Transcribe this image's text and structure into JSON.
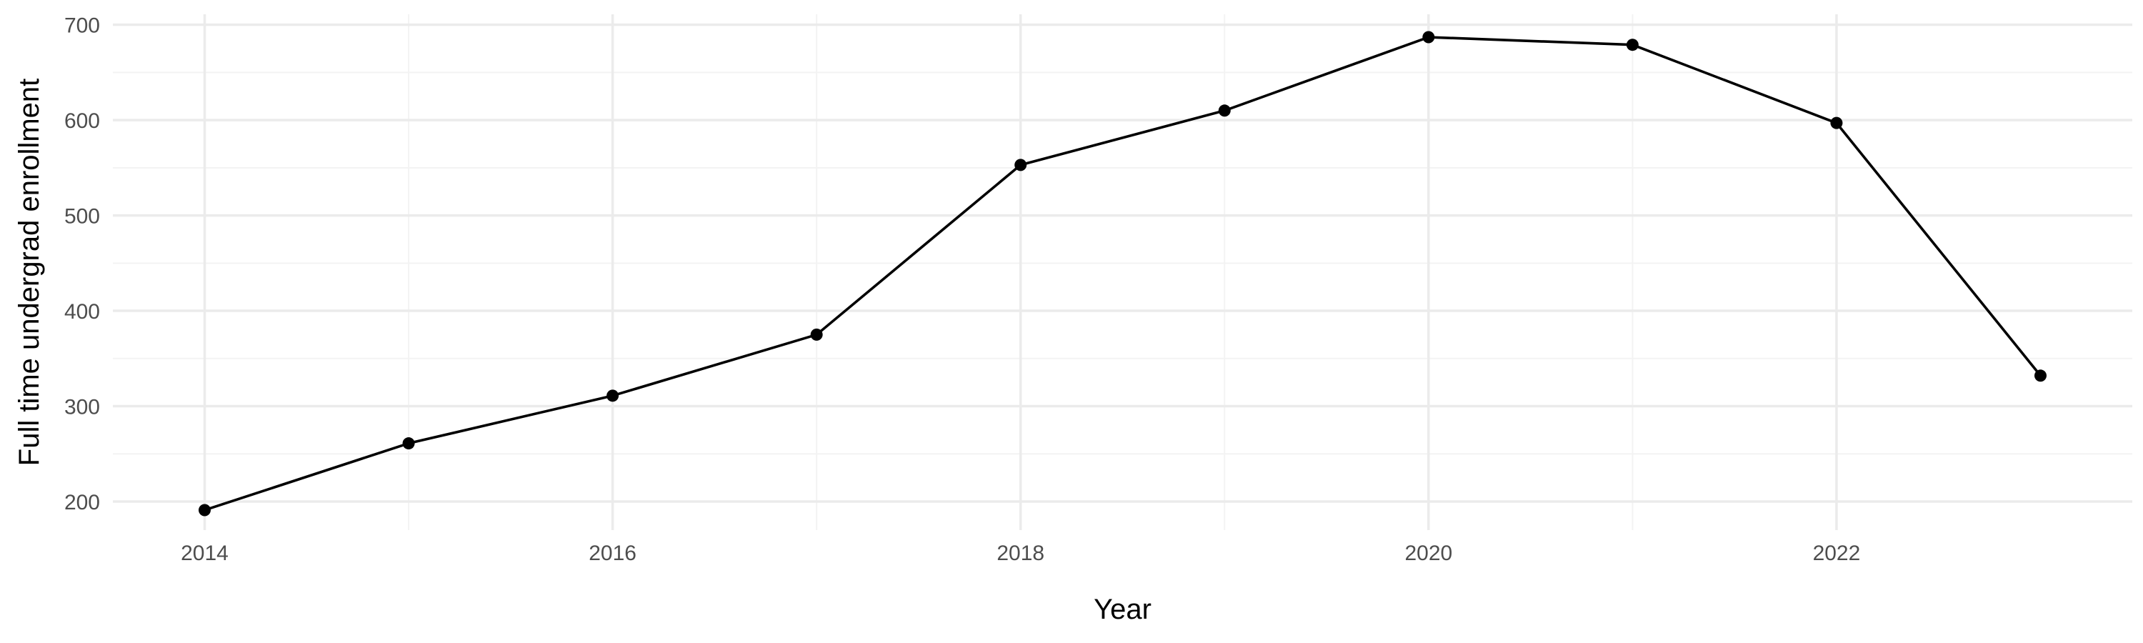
{
  "chart_data": {
    "type": "line",
    "title": "",
    "xlabel": "Year",
    "ylabel": "Full time undergrad enrollment",
    "x": [
      2014,
      2015,
      2016,
      2017,
      2018,
      2019,
      2020,
      2021,
      2022,
      2023
    ],
    "series": [
      {
        "values": [
          191,
          261,
          311,
          375,
          553,
          610,
          687,
          679,
          597,
          332
        ]
      }
    ],
    "xlim": [
      2013.55,
      2023.45
    ],
    "ylim": [
      170,
      711
    ],
    "x_ticks": [
      2014,
      2016,
      2018,
      2020,
      2022
    ],
    "x_tick_labels": [
      "2014",
      "2016",
      "2018",
      "2020",
      "2022"
    ],
    "y_ticks": [
      200,
      300,
      400,
      500,
      600,
      700
    ],
    "y_tick_labels": [
      "200",
      "300",
      "400",
      "500",
      "600",
      "700"
    ],
    "grid": true,
    "legend": "none",
    "colors": {
      "line": "#000000",
      "point": "#000000",
      "grid_major": "#ebebeb",
      "grid_minor": "#f3f3f3",
      "tick_text": "#4d4d4d",
      "background": "#ffffff"
    }
  }
}
